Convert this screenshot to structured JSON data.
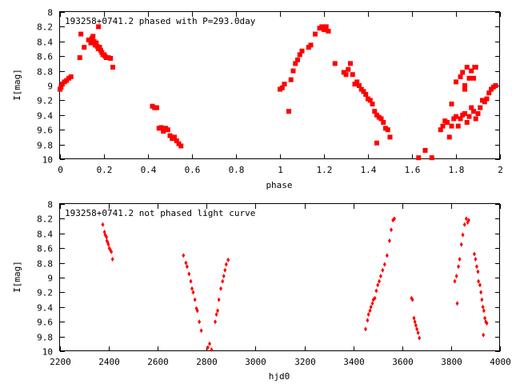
{
  "chart_data": [
    {
      "type": "scatter",
      "title": "193258+0741.2 phased with P=293.0day",
      "xlabel": "phase",
      "ylabel": "I[mag]",
      "xlim": [
        0,
        2
      ],
      "ylim": [
        8,
        10
      ],
      "y_inverted": true,
      "grid": false,
      "marker_color": "#ff0000",
      "marker": "filled-square",
      "xticks": [
        "0",
        "0.2",
        "0.4",
        "0.6",
        "0.8",
        "1",
        "1.2",
        "1.4",
        "1.6",
        "1.8",
        "2"
      ],
      "yticks": [
        "8",
        "8.2",
        "8.4",
        "8.6",
        "8.8",
        "9",
        "9.2",
        "9.4",
        "9.6",
        "9.8",
        "10"
      ],
      "points": [
        [
          0.0,
          9.05
        ],
        [
          0.005,
          9.02
        ],
        [
          0.01,
          8.98
        ],
        [
          0.02,
          8.95
        ],
        [
          0.03,
          8.93
        ],
        [
          0.04,
          8.9
        ],
        [
          0.05,
          8.88
        ],
        [
          0.09,
          8.62
        ],
        [
          0.095,
          8.3
        ],
        [
          0.11,
          8.48
        ],
        [
          0.13,
          8.38
        ],
        [
          0.14,
          8.42
        ],
        [
          0.145,
          8.36
        ],
        [
          0.15,
          8.33
        ],
        [
          0.155,
          8.4
        ],
        [
          0.16,
          8.45
        ],
        [
          0.165,
          8.42
        ],
        [
          0.17,
          8.47
        ],
        [
          0.175,
          8.5
        ],
        [
          0.18,
          8.48
        ],
        [
          0.185,
          8.52
        ],
        [
          0.175,
          8.2
        ],
        [
          0.19,
          8.55
        ],
        [
          0.195,
          8.58
        ],
        [
          0.2,
          8.58
        ],
        [
          0.205,
          8.6
        ],
        [
          0.21,
          8.62
        ],
        [
          0.22,
          8.62
        ],
        [
          0.23,
          8.63
        ],
        [
          0.24,
          8.75
        ],
        [
          0.42,
          9.28
        ],
        [
          0.43,
          9.3
        ],
        [
          0.44,
          9.3
        ],
        [
          0.45,
          9.58
        ],
        [
          0.46,
          9.57
        ],
        [
          0.47,
          9.62
        ],
        [
          0.48,
          9.58
        ],
        [
          0.49,
          9.6
        ],
        [
          0.5,
          9.68
        ],
        [
          0.51,
          9.72
        ],
        [
          0.52,
          9.7
        ],
        [
          0.53,
          9.75
        ],
        [
          0.54,
          9.79
        ],
        [
          0.55,
          9.82
        ],
        [
          1.0,
          9.05
        ],
        [
          1.01,
          9.03
        ],
        [
          1.02,
          8.98
        ],
        [
          1.04,
          9.35
        ],
        [
          1.05,
          8.92
        ],
        [
          1.06,
          8.8
        ],
        [
          1.07,
          8.7
        ],
        [
          1.08,
          8.65
        ],
        [
          1.09,
          8.58
        ],
        [
          1.1,
          8.53
        ],
        [
          1.13,
          8.48
        ],
        [
          1.14,
          8.45
        ],
        [
          1.16,
          8.3
        ],
        [
          1.18,
          8.22
        ],
        [
          1.19,
          8.2
        ],
        [
          1.2,
          8.24
        ],
        [
          1.21,
          8.2
        ],
        [
          1.22,
          8.26
        ],
        [
          1.25,
          8.7
        ],
        [
          1.29,
          8.82
        ],
        [
          1.3,
          8.85
        ],
        [
          1.31,
          8.78
        ],
        [
          1.32,
          8.7
        ],
        [
          1.33,
          8.85
        ],
        [
          1.34,
          8.98
        ],
        [
          1.35,
          8.95
        ],
        [
          1.36,
          9.0
        ],
        [
          1.37,
          9.05
        ],
        [
          1.38,
          9.08
        ],
        [
          1.39,
          9.12
        ],
        [
          1.4,
          9.18
        ],
        [
          1.41,
          9.2
        ],
        [
          1.42,
          9.25
        ],
        [
          1.43,
          9.35
        ],
        [
          1.44,
          9.4
        ],
        [
          1.45,
          9.43
        ],
        [
          1.46,
          9.45
        ],
        [
          1.47,
          9.5
        ],
        [
          1.48,
          9.58
        ],
        [
          1.49,
          9.6
        ],
        [
          1.5,
          9.7
        ],
        [
          1.44,
          9.78
        ],
        [
          1.63,
          9.98
        ],
        [
          1.66,
          9.88
        ],
        [
          1.69,
          9.98
        ],
        [
          1.73,
          9.6
        ],
        [
          1.74,
          9.55
        ],
        [
          1.75,
          9.48
        ],
        [
          1.76,
          9.5
        ],
        [
          1.77,
          9.7
        ],
        [
          1.78,
          9.55
        ],
        [
          1.79,
          9.45
        ],
        [
          1.8,
          9.42
        ],
        [
          1.81,
          9.55
        ],
        [
          1.82,
          9.45
        ],
        [
          1.83,
          9.4
        ],
        [
          1.84,
          9.38
        ],
        [
          1.85,
          9.5
        ],
        [
          1.86,
          9.42
        ],
        [
          1.87,
          9.3
        ],
        [
          1.88,
          9.35
        ],
        [
          1.89,
          9.45
        ],
        [
          1.9,
          9.38
        ],
        [
          1.91,
          9.3
        ],
        [
          1.92,
          9.2
        ],
        [
          1.93,
          9.22
        ],
        [
          1.94,
          9.18
        ],
        [
          1.95,
          9.1
        ],
        [
          1.96,
          9.05
        ],
        [
          1.97,
          9.02
        ],
        [
          1.98,
          9.0
        ],
        [
          1.78,
          9.25
        ],
        [
          1.8,
          8.95
        ],
        [
          1.82,
          8.88
        ],
        [
          1.83,
          8.82
        ],
        [
          1.84,
          9.0
        ],
        [
          1.85,
          8.75
        ],
        [
          1.86,
          8.9
        ],
        [
          1.87,
          8.8
        ],
        [
          1.88,
          8.9
        ],
        [
          1.885,
          8.75
        ],
        [
          1.84,
          9.05
        ],
        [
          1.89,
          8.75
        ]
      ]
    },
    {
      "type": "scatter",
      "title": "193258+0741.2 not phased light curve",
      "xlabel": "hjd0",
      "ylabel": "I[mag]",
      "xlim": [
        2200,
        4000
      ],
      "ylim": [
        8,
        10
      ],
      "y_inverted": true,
      "grid": false,
      "marker_color": "#ff0000",
      "marker": "small-diamond",
      "xticks": [
        "2200",
        "2400",
        "2600",
        "2800",
        "3000",
        "3200",
        "3400",
        "3600",
        "3800",
        "4000"
      ],
      "yticks": [
        "8",
        "8.2",
        "8.4",
        "8.6",
        "8.8",
        "9",
        "9.2",
        "9.4",
        "9.6",
        "9.8",
        "10"
      ],
      "points": [
        [
          2375,
          8.28
        ],
        [
          2382,
          8.38
        ],
        [
          2385,
          8.42
        ],
        [
          2390,
          8.45
        ],
        [
          2392,
          8.5
        ],
        [
          2395,
          8.52
        ],
        [
          2398,
          8.55
        ],
        [
          2402,
          8.6
        ],
        [
          2405,
          8.62
        ],
        [
          2410,
          8.65
        ],
        [
          2415,
          8.75
        ],
        [
          2705,
          8.7
        ],
        [
          2715,
          8.8
        ],
        [
          2720,
          8.85
        ],
        [
          2728,
          8.95
        ],
        [
          2735,
          9.05
        ],
        [
          2740,
          9.15
        ],
        [
          2745,
          9.2
        ],
        [
          2752,
          9.3
        ],
        [
          2758,
          9.42
        ],
        [
          2762,
          9.45
        ],
        [
          2770,
          9.6
        ],
        [
          2778,
          9.72
        ],
        [
          2805,
          9.95
        ],
        [
          2812,
          9.9
        ],
        [
          2820,
          9.98
        ],
        [
          2835,
          9.6
        ],
        [
          2840,
          9.5
        ],
        [
          2845,
          9.45
        ],
        [
          2850,
          9.3
        ],
        [
          2858,
          9.15
        ],
        [
          2865,
          9.05
        ],
        [
          2870,
          8.98
        ],
        [
          2875,
          8.9
        ],
        [
          2880,
          8.82
        ],
        [
          2888,
          8.76
        ],
        [
          3450,
          9.7
        ],
        [
          3458,
          9.58
        ],
        [
          3462,
          9.5
        ],
        [
          3468,
          9.45
        ],
        [
          3472,
          9.4
        ],
        [
          3478,
          9.35
        ],
        [
          3482,
          9.3
        ],
        [
          3488,
          9.28
        ],
        [
          3494,
          9.18
        ],
        [
          3500,
          9.1
        ],
        [
          3506,
          9.05
        ],
        [
          3512,
          8.98
        ],
        [
          3520,
          8.9
        ],
        [
          3528,
          8.82
        ],
        [
          3538,
          8.7
        ],
        [
          3548,
          8.5
        ],
        [
          3555,
          8.35
        ],
        [
          3562,
          8.22
        ],
        [
          3568,
          8.2
        ],
        [
          3638,
          9.28
        ],
        [
          3642,
          9.3
        ],
        [
          3648,
          9.55
        ],
        [
          3652,
          9.6
        ],
        [
          3656,
          9.65
        ],
        [
          3660,
          9.7
        ],
        [
          3665,
          9.75
        ],
        [
          3670,
          9.82
        ],
        [
          3815,
          9.05
        ],
        [
          3822,
          8.98
        ],
        [
          3825,
          9.35
        ],
        [
          3830,
          8.85
        ],
        [
          3835,
          8.75
        ],
        [
          3842,
          8.55
        ],
        [
          3848,
          8.42
        ],
        [
          3855,
          8.28
        ],
        [
          3862,
          8.2
        ],
        [
          3868,
          8.25
        ],
        [
          3872,
          8.22
        ],
        [
          3895,
          8.68
        ],
        [
          3900,
          8.75
        ],
        [
          3905,
          8.85
        ],
        [
          3910,
          8.92
        ],
        [
          3912,
          9.05
        ],
        [
          3918,
          9.1
        ],
        [
          3922,
          9.2
        ],
        [
          3926,
          9.3
        ],
        [
          3930,
          9.4
        ],
        [
          3934,
          9.45
        ],
        [
          3938,
          9.55
        ],
        [
          3942,
          9.6
        ],
        [
          3946,
          9.62
        ],
        [
          3932,
          9.78
        ]
      ]
    }
  ]
}
